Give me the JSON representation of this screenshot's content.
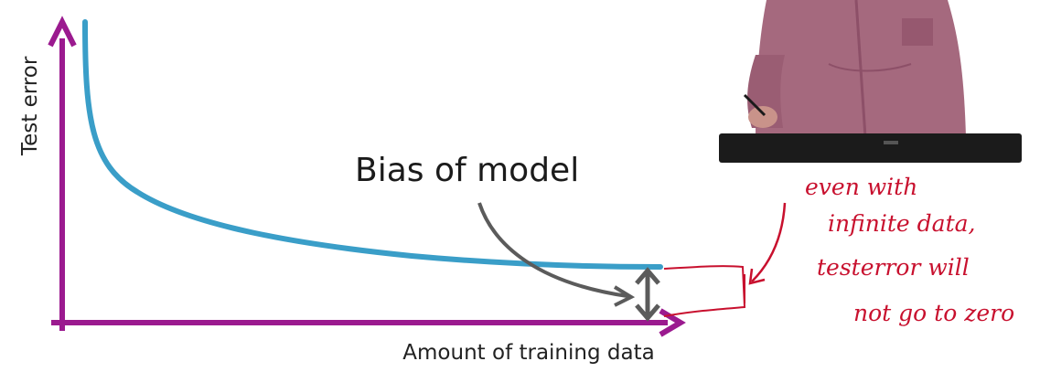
{
  "diagram": {
    "axis_y_label": "Test error",
    "axis_x_label": "Amount of training data",
    "annotation_label": "Bias of model",
    "handwritten_note": [
      "even with",
      "infinite data,",
      "testerror will",
      "not go to zero"
    ],
    "colors": {
      "axis": "#9b1a8f",
      "curve": "#3a9ec8",
      "annotation_arrow": "#5b5b5b",
      "ink": "#c8102e"
    }
  },
  "video_overlay": {
    "content": "presenter at podium"
  }
}
